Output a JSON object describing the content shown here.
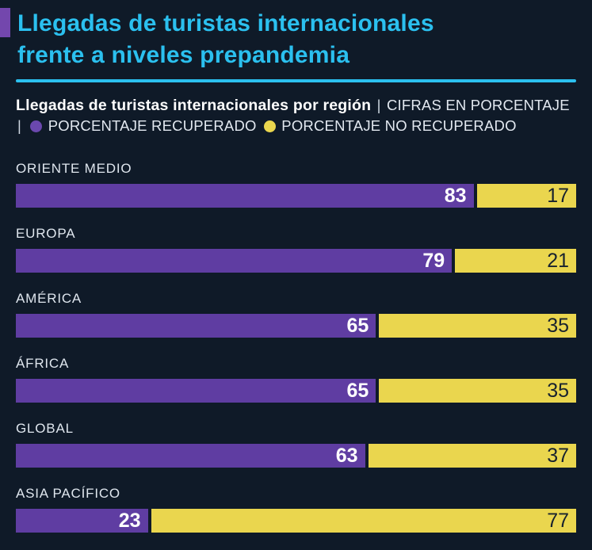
{
  "header": {
    "title_line1": "Llegadas de turistas internacionales",
    "title_line2": "frente a niveles prepandemia"
  },
  "subtitle": {
    "bold": "Llegadas de turistas internacionales por región",
    "sep1": "|",
    "cifras": "CIFRAS EN PORCENTAJE",
    "sep2": "|",
    "legend_recovered": "PORCENTAJE RECUPERADO",
    "legend_not_recovered": "PORCENTAJE NO RECUPERADO"
  },
  "colors": {
    "background": "#0f1a28",
    "accent_cyan": "#2bc0ef",
    "accent_purple_block": "#7347ad",
    "bar_purple": "#5f3da2",
    "bar_yellow": "#ead64e",
    "label_text": "#dfe6ee",
    "value_on_purple": "#ffffff",
    "value_on_yellow": "#18222e"
  },
  "chart_data": {
    "type": "bar",
    "orientation": "horizontal",
    "stacked": true,
    "title": "Llegadas de turistas internacionales frente a niveles prepandemia",
    "subtitle": "Llegadas de turistas internacionales por región | CIFRAS EN PORCENTAJE",
    "categories": [
      "ORIENTE MEDIO",
      "EUROPA",
      "AMÉRICA",
      "ÁFRICA",
      "GLOBAL",
      "ASIA PACÍFICO"
    ],
    "series": [
      {
        "name": "PORCENTAJE RECUPERADO",
        "color": "#5f3da2",
        "values": [
          83,
          79,
          65,
          65,
          63,
          23
        ]
      },
      {
        "name": "PORCENTAJE NO RECUPERADO",
        "color": "#ead64e",
        "values": [
          17,
          21,
          35,
          35,
          37,
          77
        ]
      }
    ],
    "xlim": [
      0,
      100
    ],
    "units": "percent",
    "legend_position": "top",
    "grid": false
  }
}
